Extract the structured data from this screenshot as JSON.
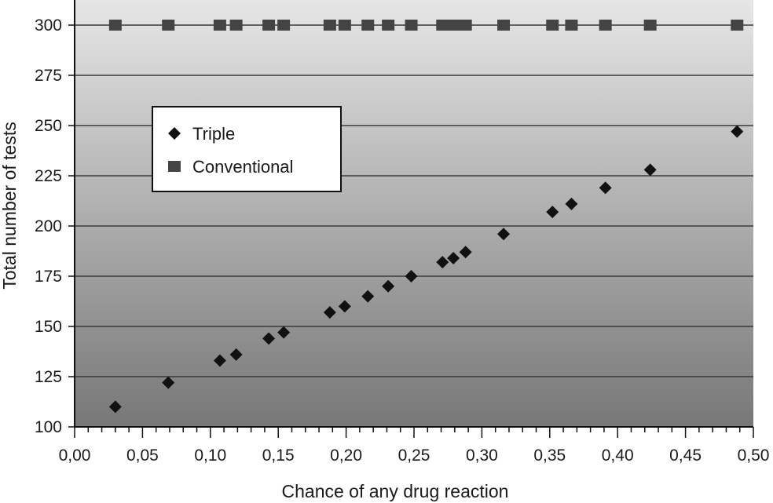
{
  "chart_data": {
    "type": "scatter",
    "xlabel": "Chance of any drug reaction",
    "ylabel": "Total number of tests",
    "xlim": [
      0,
      0.5
    ],
    "ylim": [
      100,
      310
    ],
    "x_ticks": [
      "0,00",
      "0,05",
      "0,10",
      "0,15",
      "0,20",
      "0,25",
      "0,30",
      "0,35",
      "0,40",
      "0,45",
      "0,50"
    ],
    "y_ticks": [
      "100",
      "125",
      "150",
      "175",
      "200",
      "225",
      "250",
      "275",
      "300"
    ],
    "grid": "horizontal",
    "background": "vertical gradient light gray to dark gray",
    "legend_position": "upper-left",
    "series": [
      {
        "name": "Triple",
        "marker": "diamond",
        "color": "#111111",
        "points": [
          {
            "x": 0.03,
            "y": 110
          },
          {
            "x": 0.069,
            "y": 122
          },
          {
            "x": 0.107,
            "y": 133
          },
          {
            "x": 0.119,
            "y": 136
          },
          {
            "x": 0.143,
            "y": 144
          },
          {
            "x": 0.154,
            "y": 147
          },
          {
            "x": 0.188,
            "y": 157
          },
          {
            "x": 0.199,
            "y": 160
          },
          {
            "x": 0.216,
            "y": 165
          },
          {
            "x": 0.231,
            "y": 170
          },
          {
            "x": 0.248,
            "y": 175
          },
          {
            "x": 0.271,
            "y": 182
          },
          {
            "x": 0.279,
            "y": 184
          },
          {
            "x": 0.288,
            "y": 187
          },
          {
            "x": 0.316,
            "y": 196
          },
          {
            "x": 0.352,
            "y": 207
          },
          {
            "x": 0.366,
            "y": 211
          },
          {
            "x": 0.391,
            "y": 219
          },
          {
            "x": 0.424,
            "y": 228
          },
          {
            "x": 0.488,
            "y": 247
          }
        ]
      },
      {
        "name": "Conventional",
        "marker": "square",
        "color": "#444444",
        "points": [
          {
            "x": 0.03,
            "y": 300
          },
          {
            "x": 0.069,
            "y": 300
          },
          {
            "x": 0.107,
            "y": 300
          },
          {
            "x": 0.119,
            "y": 300
          },
          {
            "x": 0.143,
            "y": 300
          },
          {
            "x": 0.154,
            "y": 300
          },
          {
            "x": 0.188,
            "y": 300
          },
          {
            "x": 0.199,
            "y": 300
          },
          {
            "x": 0.216,
            "y": 300
          },
          {
            "x": 0.231,
            "y": 300
          },
          {
            "x": 0.248,
            "y": 300
          },
          {
            "x": 0.271,
            "y": 300
          },
          {
            "x": 0.279,
            "y": 300
          },
          {
            "x": 0.288,
            "y": 300
          },
          {
            "x": 0.316,
            "y": 300
          },
          {
            "x": 0.352,
            "y": 300
          },
          {
            "x": 0.366,
            "y": 300
          },
          {
            "x": 0.391,
            "y": 300
          },
          {
            "x": 0.424,
            "y": 300
          },
          {
            "x": 0.488,
            "y": 300
          }
        ]
      }
    ]
  }
}
